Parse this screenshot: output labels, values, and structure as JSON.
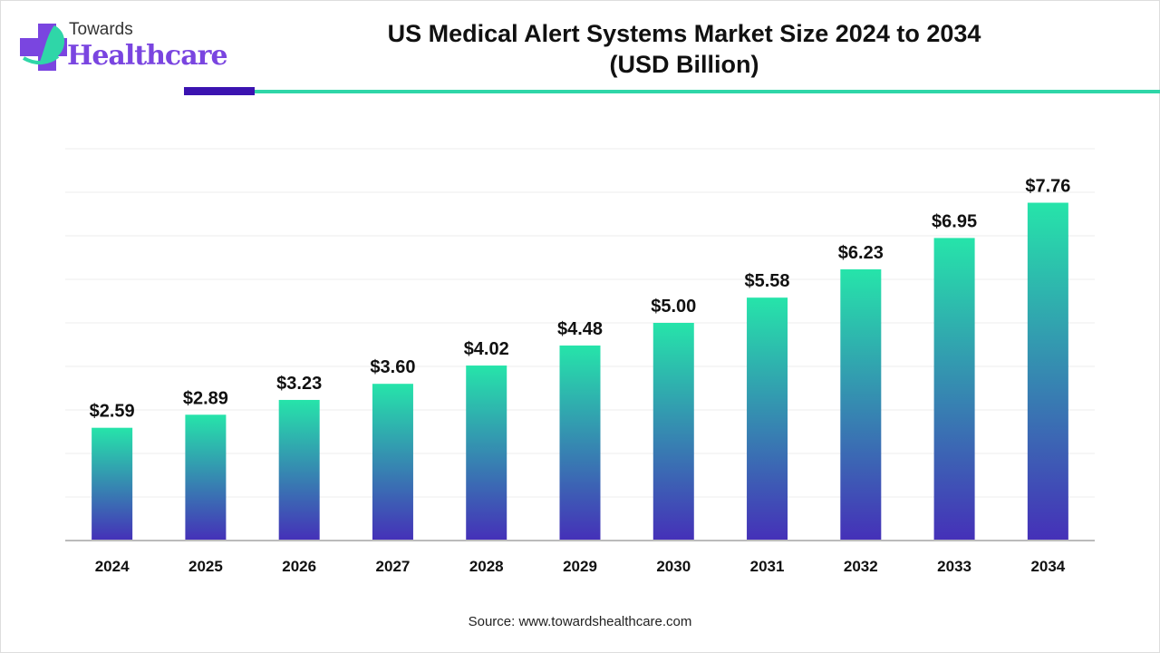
{
  "logo": {
    "line1": "Towards",
    "line2": "Healthcare"
  },
  "source": "Source: www.towardshealthcare.com",
  "chart_data": {
    "type": "bar",
    "title": "US Medical Alert Systems Market Size 2024 to 2034\n(USD Billion)",
    "title_lines": [
      "US Medical Alert Systems Market Size 2024 to 2034",
      "(USD Billion)"
    ],
    "categories": [
      "2024",
      "2025",
      "2026",
      "2027",
      "2028",
      "2029",
      "2030",
      "2031",
      "2032",
      "2033",
      "2034"
    ],
    "values": [
      2.59,
      2.89,
      3.23,
      3.6,
      4.02,
      4.48,
      5.0,
      5.58,
      6.23,
      6.95,
      7.76
    ],
    "data_labels": [
      "$2.59",
      "$2.89",
      "$3.23",
      "$3.60",
      "$4.02",
      "$4.48",
      "$5.00",
      "$5.58",
      "$6.23",
      "$6.95",
      "$7.76"
    ],
    "xlabel": "",
    "ylabel": "",
    "ylim": [
      0,
      9
    ],
    "grid": true,
    "colors": {
      "bar_top": "#26e4aa",
      "bar_bottom": "#4530b8",
      "accent_dark": "#3b13b0",
      "accent_teal": "#2fd6a8"
    }
  }
}
